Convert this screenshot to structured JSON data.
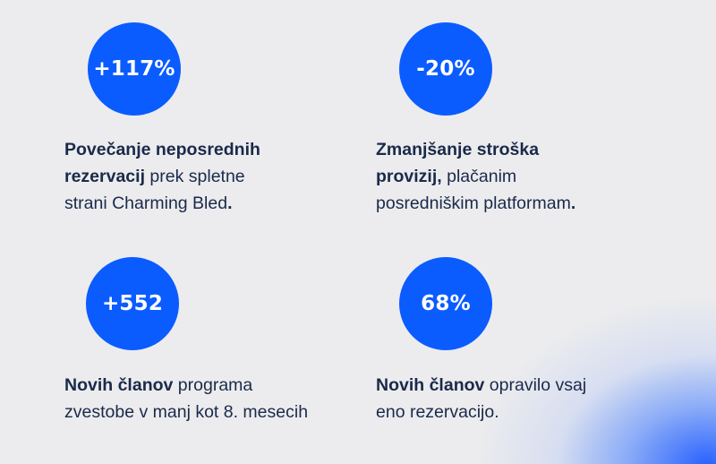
{
  "colors": {
    "background": "#ececee",
    "accent": "#0b5cff",
    "text": "#1a2a4a"
  },
  "stats": [
    {
      "value": "+117%",
      "line1_bold": "Povečanje neposrednih",
      "line2_bold": "rezervacij",
      "line2_normal": " prek spletne",
      "line3_normal": "strani Charming Bled",
      "line3_bold": "."
    },
    {
      "value": "-20%",
      "line1_bold": "Zmanjšanje stroška",
      "line2_bold": "provizij,",
      "line2_normal": " plačanim",
      "line3_normal": "posredniškim platformam",
      "line3_bold": "."
    },
    {
      "value": "+552",
      "line1_bold": "Novih članov",
      "line1_normal": " programa",
      "line2_normal": "zvestobe v manj kot 8. mesecih"
    },
    {
      "value": "68%",
      "line1_bold": "Novih članov",
      "line1_normal": " opravilo vsaj",
      "line2_normal": "eno rezervacijo."
    }
  ]
}
